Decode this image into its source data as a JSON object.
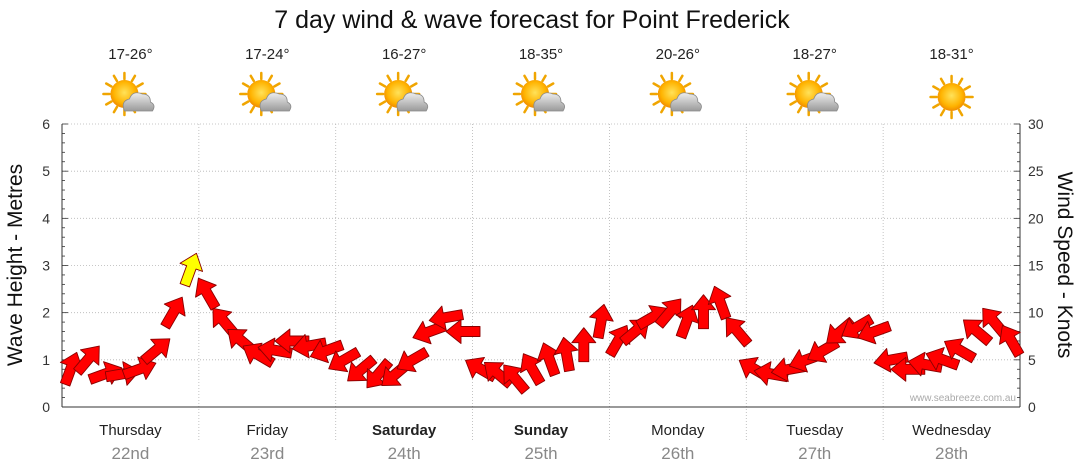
{
  "chart_data": {
    "type": "line",
    "title": "7 day wind & wave forecast for Point Frederick",
    "ylabel_left": "Wave Height - Metres",
    "ylabel_right": "Wind Speed - Knots",
    "ylim_left": [
      0,
      6
    ],
    "ylim_right": [
      0,
      30
    ],
    "yticks_left": [
      "0",
      "1",
      "2",
      "3",
      "4",
      "5",
      "6"
    ],
    "yticks_right": [
      "0",
      "5",
      "10",
      "15",
      "20",
      "25",
      "30"
    ],
    "days": [
      {
        "name": "Thursday",
        "date": "22nd",
        "temp": "17-26°",
        "weather_icon": "sun-cloud-icon",
        "bold": false
      },
      {
        "name": "Friday",
        "date": "23rd",
        "temp": "17-24°",
        "weather_icon": "sun-cloud-icon",
        "bold": false
      },
      {
        "name": "Saturday",
        "date": "24th",
        "temp": "16-27°",
        "weather_icon": "sun-cloud-icon",
        "bold": true
      },
      {
        "name": "Sunday",
        "date": "25th",
        "temp": "18-35°",
        "weather_icon": "sun-cloud-icon",
        "bold": true
      },
      {
        "name": "Monday",
        "date": "26th",
        "temp": "20-26°",
        "weather_icon": "sun-cloud-icon",
        "bold": false
      },
      {
        "name": "Tuesday",
        "date": "27th",
        "temp": "18-27°",
        "weather_icon": "sun-cloud-icon",
        "bold": false
      },
      {
        "name": "Wednesday",
        "date": "28th",
        "temp": "18-31°",
        "weather_icon": "sun-icon",
        "bold": false
      }
    ],
    "wind_series": {
      "name": "Wind Speed - Knots",
      "points_per_day": 8,
      "speed_knots": [
        4,
        5,
        3.5,
        3.5,
        4,
        6,
        10,
        14.5,
        12,
        9,
        7,
        5.5,
        6,
        7,
        6.5,
        6,
        5,
        4,
        3.5,
        3.5,
        5,
        8,
        9.5,
        8,
        4,
        3.5,
        3,
        4,
        5,
        5.5,
        6.5,
        9,
        7,
        8,
        9.5,
        10,
        9,
        10,
        11,
        8,
        4,
        3.5,
        4,
        5,
        6,
        8,
        8.5,
        8,
        5,
        4,
        4.5,
        5,
        6,
        8,
        9,
        7
      ],
      "direction_deg": [
        200,
        220,
        250,
        260,
        250,
        230,
        210,
        200,
        150,
        140,
        130,
        120,
        100,
        90,
        80,
        70,
        60,
        50,
        40,
        50,
        60,
        70,
        80,
        90,
        120,
        130,
        140,
        150,
        160,
        170,
        180,
        190,
        210,
        230,
        240,
        220,
        200,
        180,
        160,
        140,
        120,
        100,
        80,
        70,
        60,
        50,
        60,
        70,
        80,
        90,
        100,
        110,
        120,
        130,
        140,
        150
      ],
      "color_normal": "#ff0000",
      "color_strong": "#ffff00",
      "strong_threshold_knots": 14
    },
    "credit": "www.seabreeze.com.au",
    "gridlines": true
  }
}
